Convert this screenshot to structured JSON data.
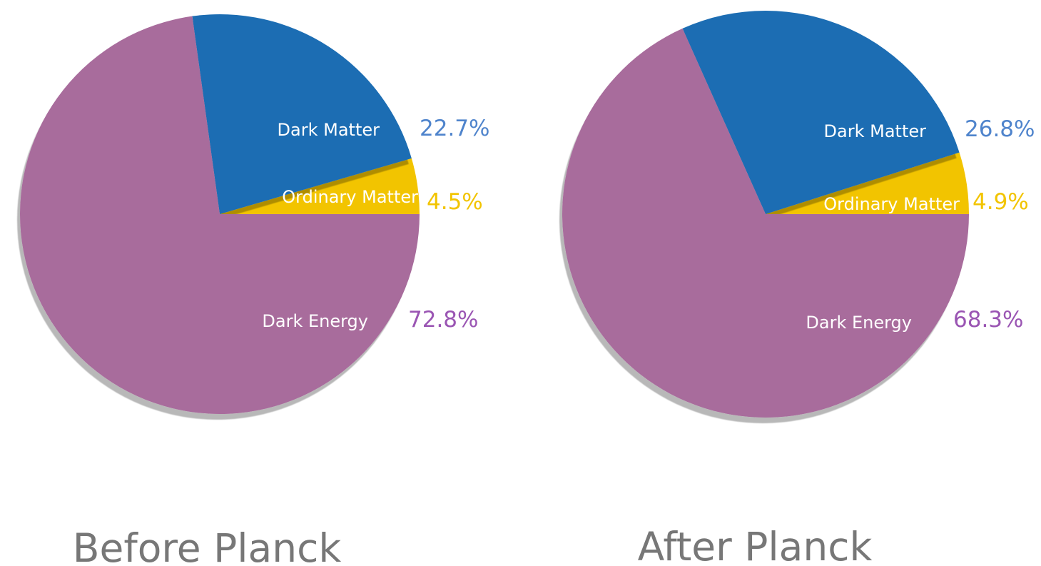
{
  "chart_data": [
    {
      "type": "pie",
      "title": "Before Planck",
      "start_angle_deg": 0,
      "direction": "counterclockwise",
      "slices": [
        {
          "label": "Ordinary Matter",
          "value": 4.5,
          "value_label": "4.5%",
          "color": "#f2c400",
          "label_color": "#f2c400"
        },
        {
          "label": "Dark Matter",
          "value": 22.7,
          "value_label": "22.7%",
          "color": "#1b6db3",
          "label_color": "#4f84cc"
        },
        {
          "label": "Dark Energy",
          "value": 72.8,
          "value_label": "72.8%",
          "color": "#a86c9c",
          "label_color": "#9a55b3"
        }
      ]
    },
    {
      "type": "pie",
      "title": "After Planck",
      "start_angle_deg": 0,
      "direction": "counterclockwise",
      "slices": [
        {
          "label": "Ordinary Matter",
          "value": 4.9,
          "value_label": "4.9%",
          "color": "#f2c400",
          "label_color": "#f2c400"
        },
        {
          "label": "Dark Matter",
          "value": 26.8,
          "value_label": "26.8%",
          "color": "#1b6db3",
          "label_color": "#4f84cc"
        },
        {
          "label": "Dark Energy",
          "value": 68.3,
          "value_label": "68.3%",
          "color": "#a86c9c",
          "label_color": "#9a55b3"
        }
      ]
    }
  ]
}
